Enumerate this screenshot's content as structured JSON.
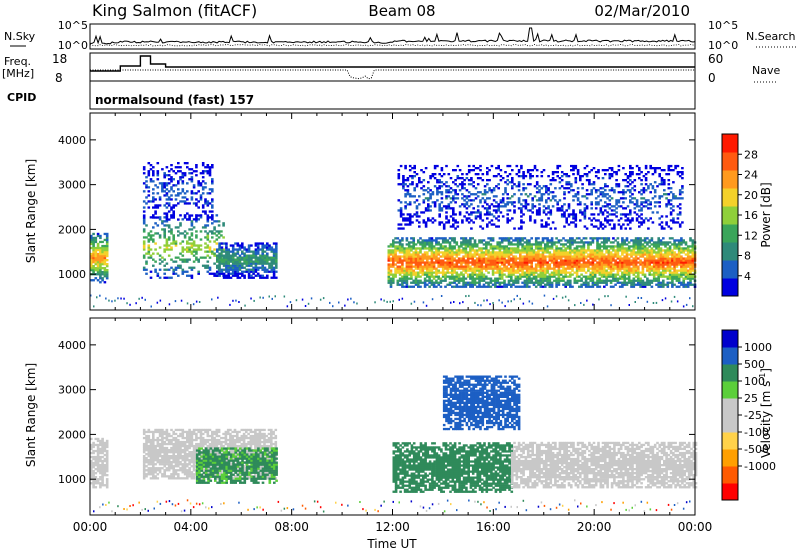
{
  "header": {
    "station": "King Salmon (fitACF)",
    "beam": "Beam 08",
    "date": "02/Mar/2010"
  },
  "noise_panel": {
    "left_label": "N.Sky",
    "right_label": "N.Search",
    "left_ticks": [
      "10^5",
      "10^0"
    ],
    "right_ticks": [
      "10^5",
      "10^0"
    ]
  },
  "freq_panel": {
    "left_label_line1": "Freq.",
    "left_label_line2": "[MHz]",
    "right_label": "Nave",
    "left_ticks": [
      "18",
      "8"
    ],
    "right_ticks": [
      "60",
      "0"
    ]
  },
  "cpid": {
    "label": "CPID",
    "value": "normalsound (fast) 157"
  },
  "colors": {
    "power_scale": [
      "#0000e0",
      "#1c5fc4",
      "#2f8a7a",
      "#3aa55a",
      "#8fcf3a",
      "#f4d12a",
      "#ff9a1e",
      "#ff5a10",
      "#ff1a00"
    ],
    "velocity_scale": [
      "#ff0000",
      "#ff5a00",
      "#ff9f00",
      "#ffd24a",
      "#c8c8c8",
      "#c8c8c8",
      "#5bcf3a",
      "#2f8a5a",
      "#1c5fc4",
      "#0000cc"
    ],
    "ground_scatter": "#c8c8c8"
  },
  "chart_data": [
    {
      "type": "heatmap",
      "title": "Power",
      "ylabel": "Slant Range [km]",
      "y_ticks": [
        "1000",
        "2000",
        "3000",
        "4000"
      ],
      "ylim": [
        200,
        4600
      ],
      "colorbar_label": "Power [dB]",
      "colorbar_ticks": [
        "28",
        "24",
        "20",
        "16",
        "12",
        "8",
        "4"
      ],
      "colorbar_range": [
        0,
        32
      ],
      "echo_regions": [
        {
          "t_start": 0.0,
          "t_end": 0.7,
          "range_low": 800,
          "range_high": 1900,
          "peak_db": 26
        },
        {
          "t_start": 2.1,
          "t_end": 5.3,
          "range_low": 900,
          "range_high": 2300,
          "peak_db": 20
        },
        {
          "t_start": 5.0,
          "t_end": 7.4,
          "range_low": 900,
          "range_high": 1700,
          "peak_db": 14
        },
        {
          "t_start": 2.1,
          "t_end": 4.8,
          "range_low": 2200,
          "range_high": 3500,
          "peak_db": 8
        },
        {
          "t_start": 11.8,
          "t_end": 24.0,
          "range_low": 700,
          "range_high": 1800,
          "peak_db": 30
        },
        {
          "t_start": 12.2,
          "t_end": 23.5,
          "range_low": 2000,
          "range_high": 3400,
          "peak_db": 8
        }
      ]
    },
    {
      "type": "heatmap",
      "title": "Velocity",
      "ylabel": "Slant Range [km]",
      "y_ticks": [
        "1000",
        "2000",
        "3000",
        "4000"
      ],
      "ylim": [
        200,
        4600
      ],
      "colorbar_label": "Velocity [m s^-1]",
      "colorbar_ticks": [
        "1000",
        "500",
        "100",
        "25",
        "-25",
        "-100",
        "-500",
        "-1000"
      ],
      "xlabel": "Time UT",
      "x_ticks": [
        "00:00",
        "04:00",
        "08:00",
        "12:00",
        "16:00",
        "20:00",
        "00:00"
      ],
      "xlim": [
        0,
        24
      ],
      "echo_regions": [
        {
          "t_start": 0.0,
          "t_end": 0.7,
          "range_low": 800,
          "range_high": 1900,
          "velocity": "ground"
        },
        {
          "t_start": 2.1,
          "t_end": 7.4,
          "range_low": 1000,
          "range_high": 2100,
          "velocity": "ground"
        },
        {
          "t_start": 4.2,
          "t_end": 7.4,
          "range_low": 900,
          "range_high": 1700,
          "velocity": 150
        },
        {
          "t_start": 12.0,
          "t_end": 16.7,
          "range_low": 700,
          "range_high": 1800,
          "velocity": 300
        },
        {
          "t_start": 16.7,
          "t_end": 24.0,
          "range_low": 800,
          "range_high": 1800,
          "velocity": "ground"
        },
        {
          "t_start": 14.0,
          "t_end": 17.0,
          "range_low": 2100,
          "range_high": 3300,
          "velocity": 800
        }
      ]
    }
  ]
}
